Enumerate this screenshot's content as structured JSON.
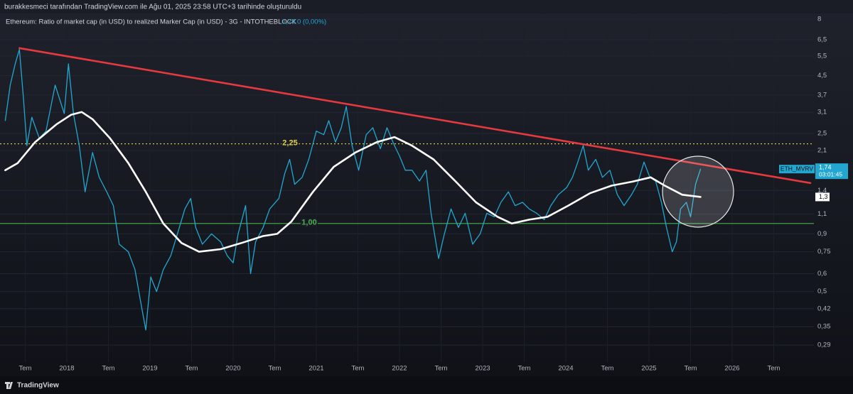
{
  "header": "burakkesmeci tarafından TradingView.com ile Ağu 01, 2025 23:58 UTC+3 tarihinde oluşturuldu",
  "footer": "TradingView",
  "chart_data": {
    "type": "line",
    "title": "Ethereum: Ratio of market cap (in USD) to realized Marker Cap (in USD) - 3G - INTOTHEBLOCK",
    "legend_change": "0 (0,00%)",
    "countdown": "03:01:45",
    "log_scale": true,
    "grid": true,
    "xlim": [
      2017.197,
      2026.983
    ],
    "ylim": [
      0.244,
      8.54
    ],
    "xticks": [
      {
        "value": 2017.5,
        "label": "Tem"
      },
      2018,
      {
        "value": 2018.5,
        "label": "Tem"
      },
      2019,
      {
        "value": 2019.5,
        "label": "Tem"
      },
      2020,
      {
        "value": 2020.5,
        "label": "Tem"
      },
      2021,
      {
        "value": 2021.5,
        "label": "Tem"
      },
      2022,
      {
        "value": 2022.5,
        "label": "Tem"
      },
      2023,
      {
        "value": 2023.5,
        "label": "Tem"
      },
      2024,
      {
        "value": 2024.5,
        "label": "Tem"
      },
      2025,
      {
        "value": 2025.5,
        "label": "Tem"
      },
      2026,
      {
        "value": 2026.5,
        "label": "Tem"
      }
    ],
    "yticks": [
      8,
      {
        "value": 6.5,
        "label": "6,5"
      },
      {
        "value": 5.5,
        "label": "5,5"
      },
      {
        "value": 4.5,
        "label": "4,5"
      },
      {
        "value": 3.7,
        "label": "3,7"
      },
      {
        "value": 3.1,
        "label": "3,1"
      },
      {
        "value": 2.5,
        "label": "2,5"
      },
      {
        "value": 2.1,
        "label": "2,1"
      },
      {
        "value": 1.4,
        "label": "1,4"
      },
      {
        "value": 1.1,
        "label": "1,1"
      },
      {
        "value": 0.9,
        "label": "0,9"
      },
      {
        "value": 0.75,
        "label": "0,75"
      },
      {
        "value": 0.6,
        "label": "0,6"
      },
      {
        "value": 0.5,
        "label": "0,5"
      },
      {
        "value": 0.42,
        "label": "0,42"
      },
      {
        "value": 0.35,
        "label": "0,35"
      },
      {
        "value": 0.29,
        "label": "0,29"
      }
    ],
    "hlines": [
      {
        "value": 2.25,
        "label": "2,25",
        "color": "#e5d14a",
        "style": "dotted"
      },
      {
        "value": 1.0,
        "label": "1,00",
        "color": "#4caf50",
        "style": "solid"
      }
    ],
    "series": [
      {
        "name": "ETH_MVRV",
        "color": "#22a7d0",
        "width": 1.3,
        "last_label": "1,74",
        "x": [
          2017.26,
          2017.32,
          2017.38,
          2017.43,
          2017.48,
          2017.52,
          2017.58,
          2017.67,
          2017.75,
          2017.86,
          2017.97,
          2018.02,
          2018.08,
          2018.15,
          2018.22,
          2018.31,
          2018.39,
          2018.48,
          2018.56,
          2018.63,
          2018.74,
          2018.82,
          2018.88,
          2018.95,
          2019.01,
          2019.08,
          2019.16,
          2019.25,
          2019.33,
          2019.42,
          2019.49,
          2019.55,
          2019.63,
          2019.74,
          2019.85,
          2019.93,
          2020.0,
          2020.06,
          2020.15,
          2020.21,
          2020.27,
          2020.36,
          2020.44,
          2020.55,
          2020.62,
          2020.68,
          2020.74,
          2020.83,
          2020.91,
          2021.0,
          2021.09,
          2021.15,
          2021.23,
          2021.3,
          2021.36,
          2021.43,
          2021.51,
          2021.6,
          2021.68,
          2021.77,
          2021.85,
          2021.94,
          2022.0,
          2022.07,
          2022.15,
          2022.24,
          2022.32,
          2022.38,
          2022.47,
          2022.54,
          2022.62,
          2022.71,
          2022.79,
          2022.88,
          2022.97,
          2023.05,
          2023.14,
          2023.22,
          2023.31,
          2023.39,
          2023.48,
          2023.56,
          2023.65,
          2023.74,
          2023.82,
          2023.91,
          2024.01,
          2024.08,
          2024.14,
          2024.21,
          2024.27,
          2024.36,
          2024.44,
          2024.53,
          2024.62,
          2024.7,
          2024.79,
          2024.86,
          2024.94,
          2025.01,
          2025.08,
          2025.15,
          2025.21,
          2025.28,
          2025.33,
          2025.38,
          2025.45,
          2025.5,
          2025.56,
          2025.62
        ],
        "values": [
          2.85,
          4.09,
          5.08,
          5.88,
          3.54,
          2.21,
          2.95,
          2.38,
          2.56,
          4.09,
          3.06,
          5.08,
          3.06,
          2.21,
          1.38,
          2.06,
          1.6,
          1.38,
          1.2,
          0.81,
          0.75,
          0.625,
          0.468,
          0.338,
          0.58,
          0.5,
          0.625,
          0.72,
          0.9,
          1.16,
          1.29,
          0.96,
          0.81,
          0.9,
          0.83,
          0.72,
          0.67,
          0.9,
          1.2,
          0.6,
          0.83,
          0.96,
          1.16,
          1.29,
          1.66,
          1.92,
          1.49,
          1.6,
          1.92,
          2.56,
          2.47,
          2.85,
          2.29,
          2.65,
          3.29,
          2.21,
          1.72,
          2.47,
          2.65,
          2.14,
          2.65,
          2.21,
          1.99,
          1.72,
          1.72,
          1.54,
          1.72,
          1.11,
          0.7,
          0.9,
          1.16,
          0.96,
          1.11,
          0.81,
          0.9,
          1.11,
          1.07,
          1.24,
          1.38,
          1.2,
          1.24,
          1.16,
          1.11,
          1.04,
          1.2,
          1.34,
          1.44,
          1.6,
          1.85,
          2.21,
          1.72,
          1.92,
          1.6,
          1.72,
          1.34,
          1.2,
          1.34,
          1.49,
          1.87,
          1.6,
          1.54,
          1.24,
          0.96,
          0.75,
          0.83,
          1.16,
          1.24,
          1.07,
          1.49,
          1.74
        ]
      },
      {
        "color": "#ffffff",
        "width": 2.6,
        "last_label": "1,3",
        "x": [
          2017.26,
          2017.41,
          2017.62,
          2017.88,
          2018.05,
          2018.18,
          2018.31,
          2018.52,
          2018.74,
          2018.95,
          2019.16,
          2019.38,
          2019.59,
          2019.85,
          2020.1,
          2020.36,
          2020.53,
          2020.7,
          2020.96,
          2021.21,
          2021.47,
          2021.73,
          2021.94,
          2022.15,
          2022.41,
          2022.67,
          2022.92,
          2023.18,
          2023.35,
          2023.56,
          2023.78,
          2024.03,
          2024.29,
          2024.55,
          2024.8,
          2025.02,
          2025.19,
          2025.4,
          2025.62
        ],
        "values": [
          1.72,
          1.85,
          2.29,
          2.75,
          3.02,
          3.11,
          2.89,
          2.38,
          1.85,
          1.38,
          1.0,
          0.82,
          0.75,
          0.77,
          0.82,
          0.88,
          0.9,
          1.02,
          1.38,
          1.78,
          2.06,
          2.29,
          2.41,
          2.21,
          1.92,
          1.54,
          1.24,
          1.07,
          1.0,
          1.04,
          1.07,
          1.2,
          1.36,
          1.47,
          1.53,
          1.6,
          1.47,
          1.34,
          1.31
        ]
      },
      {
        "color": "#e5393f",
        "width": 2.6,
        "x": [
          2017.43,
          2026.94
        ],
        "values": [
          5.96,
          1.51
        ]
      }
    ]
  }
}
